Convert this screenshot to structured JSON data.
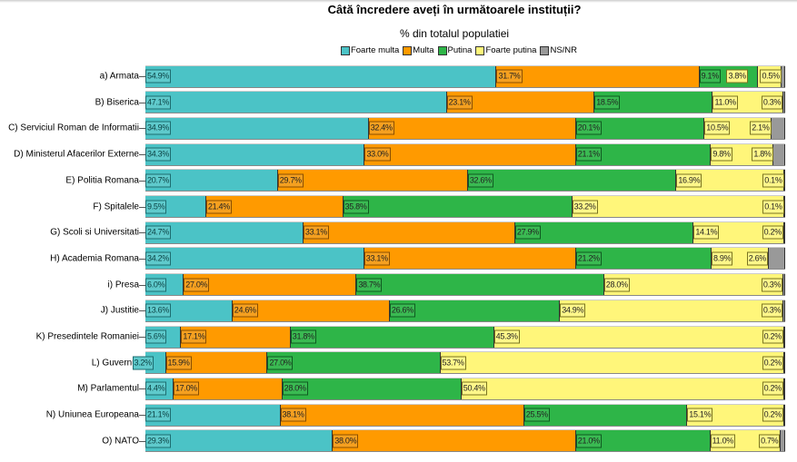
{
  "title": "Câtă încredere aveți în următoarele instituții?",
  "subtitle": "% din totalul populatiei",
  "chart_data": {
    "type": "bar",
    "orientation": "horizontal",
    "stacked": true,
    "title": "Câtă încredere aveți în următoarele instituții?",
    "subtitle": "% din totalul populatiei",
    "legend_position": "top",
    "xlim": [
      0,
      100
    ],
    "categories": [
      "a) Armata",
      "B) Biserica",
      "C) Serviciul Roman de Informatii",
      "D) Ministerul Afacerilor Externe",
      "E) Politia Romana",
      "F) Spitalele",
      "G) Scoli si Universitati",
      "H) Academia Romana",
      "i) Presa",
      "J) Justitie",
      "K) Presedintele Romaniei",
      "L) Guvernul",
      "M) Parlamentul",
      "N) Uniunea Europeana",
      "O) NATO"
    ],
    "series": [
      {
        "name": "Foarte multa",
        "color": "#4BC3C6",
        "values": [
          54.9,
          47.1,
          34.9,
          34.3,
          20.7,
          9.5,
          24.7,
          34.2,
          6.0,
          13.6,
          5.6,
          3.2,
          4.4,
          21.1,
          29.3
        ]
      },
      {
        "name": "Multa",
        "color": "#FF9A00",
        "values": [
          31.7,
          23.1,
          32.4,
          33.0,
          29.7,
          21.4,
          33.1,
          33.1,
          27.0,
          24.6,
          17.1,
          15.9,
          17.0,
          38.1,
          38.0
        ]
      },
      {
        "name": "Putina",
        "color": "#2EB548",
        "values": [
          9.1,
          18.5,
          20.1,
          21.1,
          32.6,
          35.8,
          27.9,
          21.2,
          38.7,
          26.6,
          31.8,
          27.0,
          28.0,
          25.5,
          21.0
        ]
      },
      {
        "name": "Foarte putina",
        "color": "#FFF67A",
        "values": [
          3.8,
          11.0,
          10.5,
          9.8,
          16.9,
          33.2,
          14.1,
          8.9,
          28.0,
          34.9,
          45.3,
          53.7,
          50.4,
          15.1,
          11.0
        ]
      },
      {
        "name": "NS/NR",
        "color": "#999999",
        "values": [
          0.5,
          0.3,
          2.1,
          1.8,
          0.1,
          0.1,
          0.2,
          2.6,
          0.3,
          0.3,
          0.2,
          0.2,
          0.2,
          0.2,
          0.7
        ]
      }
    ]
  }
}
